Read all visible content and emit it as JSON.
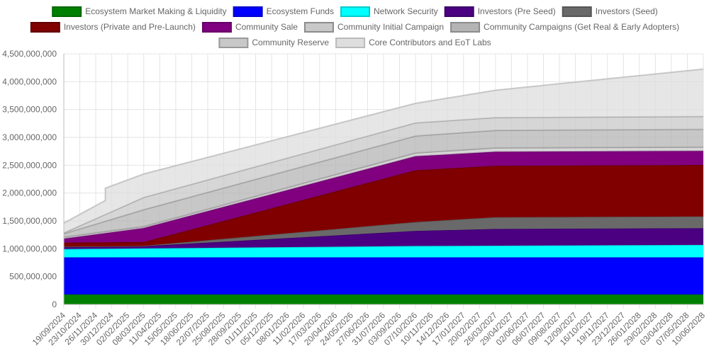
{
  "chart_data": {
    "type": "area",
    "stacked": true,
    "title": "",
    "xlabel": "",
    "ylabel": "",
    "ylim": [
      0,
      4500000000
    ],
    "yticks": [
      0,
      500000000,
      1000000000,
      1500000000,
      2000000000,
      2500000000,
      3000000000,
      3500000000,
      4000000000,
      4500000000
    ],
    "ytick_labels": [
      "0",
      "500,000,000",
      "1,000,000,000",
      "1,500,000,000",
      "2,000,000,000",
      "2,500,000,000",
      "3,000,000,000",
      "3,500,000,000",
      "4,000,000,000",
      "4,500,000,000"
    ],
    "grid": true,
    "legend_position": "top",
    "x_labels": [
      "19/09/2024",
      "23/10/2024",
      "26/11/2024",
      "30/12/2024",
      "02/02/2025",
      "08/03/2025",
      "11/04/2025",
      "15/05/2025",
      "18/06/2025",
      "22/07/2025",
      "25/08/2025",
      "28/09/2025",
      "01/11/2025",
      "05/12/2025",
      "08/01/2026",
      "11/02/2026",
      "17/03/2026",
      "20/04/2026",
      "24/05/2026",
      "27/06/2026",
      "31/07/2026",
      "03/09/2026",
      "07/10/2026",
      "10/11/2026",
      "14/12/2026",
      "17/01/2027",
      "20/02/2027",
      "26/03/2027",
      "29/04/2027",
      "02/06/2027",
      "06/07/2027",
      "09/08/2027",
      "12/09/2027",
      "16/10/2027",
      "19/11/2027",
      "23/12/2027",
      "26/01/2028",
      "29/02/2028",
      "03/04/2028",
      "07/05/2028",
      "10/06/2028"
    ],
    "series": [
      {
        "name": "Ecosystem Market Making & Liquidity",
        "color": "#008000",
        "stroke": "#006600",
        "points": [
          [
            0,
            180000000
          ],
          [
            40,
            180000000
          ]
        ]
      },
      {
        "name": "Ecosystem Funds",
        "color": "#0000ff",
        "stroke": "#0000cc",
        "points": [
          [
            0,
            665000000
          ],
          [
            40,
            665000000
          ]
        ]
      },
      {
        "name": "Network Security",
        "color": "#00ffff",
        "stroke": "#00cccc",
        "points": [
          [
            0,
            150000000
          ],
          [
            5,
            162000000
          ],
          [
            22,
            205000000
          ],
          [
            40,
            225000000
          ]
        ]
      },
      {
        "name": "Investors (Pre Seed)",
        "color": "#4b0082",
        "stroke": "#3a0066",
        "points": [
          [
            0,
            40000000
          ],
          [
            5,
            40000000
          ],
          [
            22,
            270000000
          ],
          [
            27,
            300000000
          ],
          [
            40,
            300000000
          ]
        ]
      },
      {
        "name": "Investors (Seed)",
        "color": "#696969",
        "stroke": "#555555",
        "points": [
          [
            0,
            5000000
          ],
          [
            5,
            5000000
          ],
          [
            22,
            160000000
          ],
          [
            27,
            210000000
          ],
          [
            40,
            210000000
          ]
        ]
      },
      {
        "name": "Investors (Private and Pre-Launch)",
        "color": "#800000",
        "stroke": "#600000",
        "points": [
          [
            0,
            70000000
          ],
          [
            5,
            70000000
          ],
          [
            22,
            930000000
          ],
          [
            27,
            925000000
          ],
          [
            40,
            925000000
          ]
        ]
      },
      {
        "name": "Community Sale",
        "color": "#800080",
        "stroke": "#660066",
        "points": [
          [
            0,
            70000000
          ],
          [
            5,
            250000000
          ],
          [
            22,
            250000000
          ],
          [
            27,
            250000000
          ],
          [
            40,
            250000000
          ]
        ]
      },
      {
        "name": "Community Initial Campaign",
        "color": "#c8c8c8",
        "stroke": "#8c8c8c",
        "points": [
          [
            0,
            30000000
          ],
          [
            5,
            30000000
          ],
          [
            22,
            60000000
          ],
          [
            27,
            70000000
          ],
          [
            40,
            70000000
          ]
        ]
      },
      {
        "name": "Community Campaigns (Get Real & Early Adopters)",
        "color": "#b4b4b4",
        "stroke": "#8c8c8c",
        "points": [
          [
            0,
            60000000
          ],
          [
            5,
            300000000
          ],
          [
            22,
            305000000
          ],
          [
            27,
            315000000
          ],
          [
            40,
            320000000
          ]
        ]
      },
      {
        "name": "Community Reserve",
        "color": "#c8c8c8",
        "stroke": "#999999",
        "points": [
          [
            0,
            15000000
          ],
          [
            5,
            220000000
          ],
          [
            22,
            235000000
          ],
          [
            27,
            230000000
          ],
          [
            40,
            230000000
          ]
        ]
      },
      {
        "name": "Core Contributors and EoT Labs",
        "color": "#dedede",
        "stroke": "#bbbbbb",
        "points": [
          [
            0,
            175000000
          ],
          [
            2.6,
            250000000
          ],
          [
            2.6,
            470000000
          ],
          [
            5,
            420000000
          ],
          [
            22,
            350000000
          ],
          [
            27,
            490000000
          ],
          [
            40,
            850000000
          ]
        ]
      }
    ]
  }
}
